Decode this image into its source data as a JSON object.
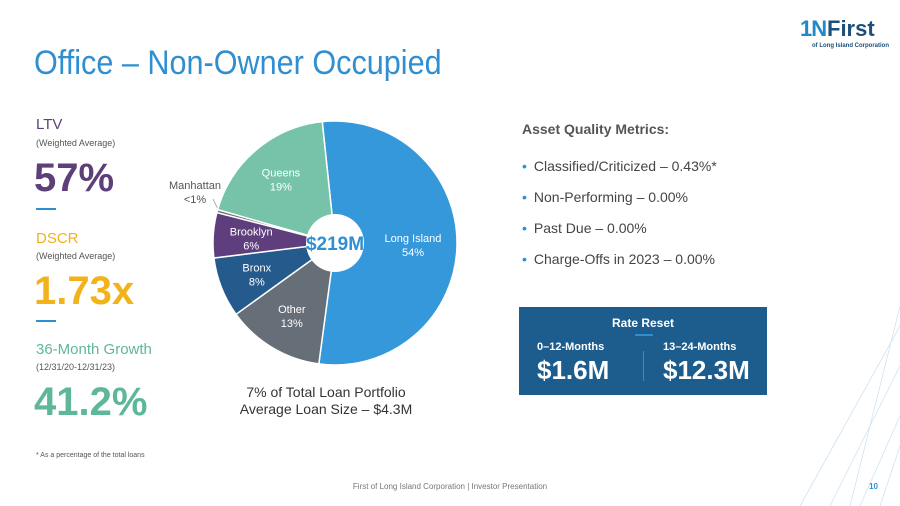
{
  "title": "Office – Non-Owner Occupied",
  "logo": {
    "mark": "1N",
    "name": "First",
    "subtitle": "of Long Island Corporation"
  },
  "metrics": [
    {
      "label": "LTV",
      "sub": "(Weighted Average)",
      "value": "57%",
      "color": "#5d3f7a"
    },
    {
      "label": "DSCR",
      "sub": "(Weighted Average)",
      "value": "1.73x",
      "color": "#f2b21b"
    },
    {
      "label": "36-Month Growth",
      "sub": "(12/31/20-12/31/23)",
      "value": "41.2%",
      "color": "#5fb79b"
    }
  ],
  "chart_data": {
    "type": "pie",
    "center_label": "$219M",
    "slices": [
      {
        "name": "Long Island",
        "value": 54,
        "label": "54%",
        "color": "#3498db"
      },
      {
        "name": "Other",
        "value": 13,
        "label": "13%",
        "color": "#666e77"
      },
      {
        "name": "Bronx",
        "value": 8,
        "label": "8%",
        "color": "#255b8c"
      },
      {
        "name": "Brooklyn",
        "value": 6,
        "label": "6%",
        "color": "#5e3e7d"
      },
      {
        "name": "Manhattan",
        "value": 0.4,
        "label": "<1%",
        "color": "#6e6e6e"
      },
      {
        "name": "Queens",
        "value": 19,
        "label": "19%",
        "color": "#76c3a9"
      }
    ]
  },
  "portfolio": {
    "line1": "7% of Total Loan Portfolio",
    "line2": "Average Loan Size – $4.3M"
  },
  "asset_quality": {
    "title": "Asset Quality Metrics:",
    "items": [
      "Classified/Criticized – 0.43%*",
      "Non-Performing – 0.00%",
      "Past Due – 0.00%",
      "Charge-Offs in 2023 – 0.00%"
    ]
  },
  "rate_reset": {
    "title": "Rate Reset",
    "left": {
      "label": "0–12-Months",
      "value": "$1.6M"
    },
    "right": {
      "label": "13–24-Months",
      "value": "$12.3M"
    }
  },
  "footnote": "* As a percentage of the total loans",
  "footer": "First of Long Island Corporation | Investor Presentation",
  "page_number": "10"
}
